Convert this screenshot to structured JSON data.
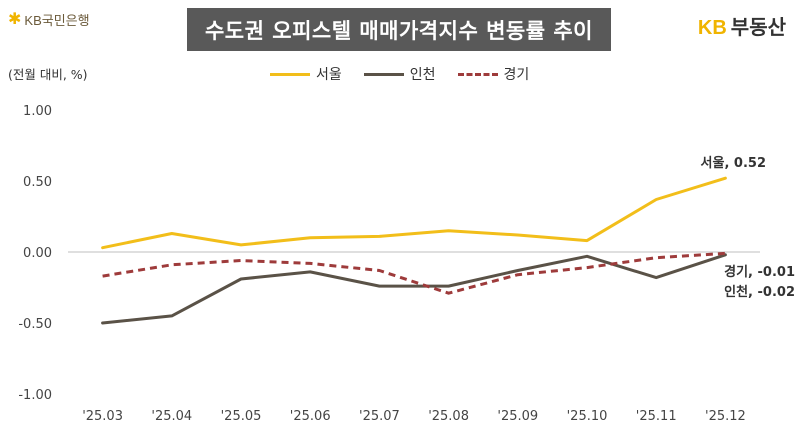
{
  "header": {
    "bank_logo_text": "KB국민은행",
    "title": "수도권 오피스텔 매매가격지수 변동률 추이",
    "brand_kb": "KB",
    "brand_name": "부동산"
  },
  "colors": {
    "seoul": "#f2be1a",
    "incheon": "#5a5247",
    "gyeonggi": "#9e3b3b",
    "title_bg": "#595959",
    "zero_line": "#bfbfbf"
  },
  "chart_data": {
    "type": "line",
    "ylabel": "(전월 대비, %)",
    "categories": [
      "'25.03",
      "'25.04",
      "'25.05",
      "'25.06",
      "'25.07",
      "'25.08",
      "'25.09",
      "'25.10",
      "'25.11",
      "'25.12"
    ],
    "ylim": [
      -1.0,
      1.0
    ],
    "yticks": [
      "1.00",
      "0.50",
      "0.00",
      "-0.50",
      "-1.00"
    ],
    "ytick_values": [
      1.0,
      0.5,
      0.0,
      -0.5,
      -1.0
    ],
    "grid": false,
    "legend_position": "top",
    "series": [
      {
        "name": "서울",
        "key": "seoul",
        "style": "solid",
        "values": [
          0.03,
          0.13,
          0.05,
          0.1,
          0.11,
          0.15,
          0.12,
          0.08,
          0.37,
          0.52
        ]
      },
      {
        "name": "인천",
        "key": "incheon",
        "style": "solid",
        "values": [
          -0.5,
          -0.45,
          -0.19,
          -0.14,
          -0.24,
          -0.24,
          -0.13,
          -0.03,
          -0.18,
          -0.02
        ]
      },
      {
        "name": "경기",
        "key": "gyeonggi",
        "style": "dashed",
        "values": [
          -0.17,
          -0.09,
          -0.06,
          -0.08,
          -0.13,
          -0.29,
          -0.16,
          -0.11,
          -0.04,
          -0.01
        ]
      }
    ],
    "end_labels": [
      {
        "key": "seoul",
        "text": "서울, 0.52"
      },
      {
        "key": "gyeonggi",
        "text": "경기, -0.01"
      },
      {
        "key": "incheon",
        "text": "인천, -0.02"
      }
    ]
  }
}
